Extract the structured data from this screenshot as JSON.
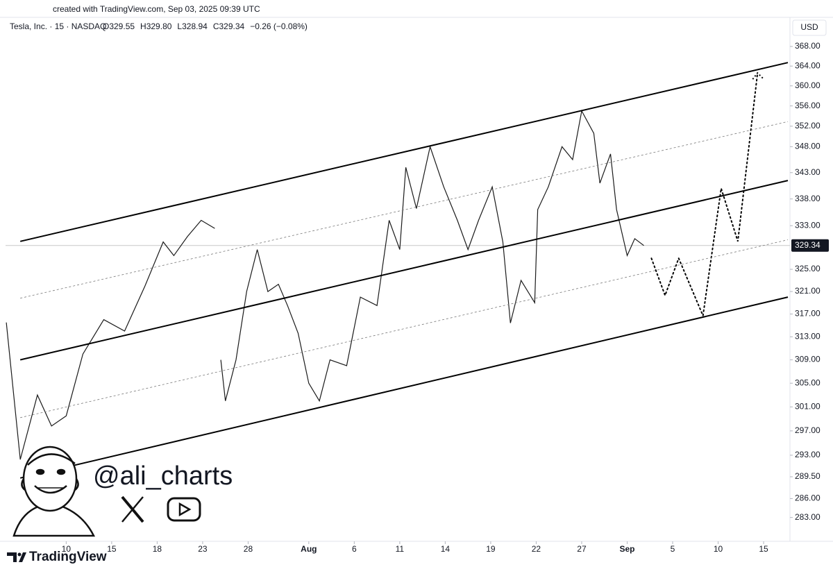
{
  "chart_data": {
    "type": "line",
    "caption": "created with TradingView.com, Sep 03, 2025 09:39 UTC",
    "symbol": "Tesla, Inc. · 15 · NASDAQ",
    "ohlc": [
      "O329.55",
      "H329.80",
      "L328.94",
      "C329.34"
    ],
    "change": "−0.26 (−0.08%)",
    "currency": "USD",
    "handle": "@ali_charts",
    "brand": "TradingView",
    "log": true,
    "last_price": {
      "value": 329.34,
      "label": "329.34"
    },
    "xlim": [
      -4,
      47.6
    ],
    "ylim": [
      281,
      372
    ],
    "xticks": [
      {
        "value": 0,
        "label": "10"
      },
      {
        "value": 3,
        "label": "15"
      },
      {
        "value": 6,
        "label": "18"
      },
      {
        "value": 9,
        "label": "23"
      },
      {
        "value": 12,
        "label": "28"
      },
      {
        "value": 16,
        "label": "Aug"
      },
      {
        "value": 19,
        "label": "6"
      },
      {
        "value": 22,
        "label": "11"
      },
      {
        "value": 25,
        "label": "14"
      },
      {
        "value": 28,
        "label": "19"
      },
      {
        "value": 31,
        "label": "22"
      },
      {
        "value": 34,
        "label": "27"
      },
      {
        "value": 37,
        "label": "Sep"
      },
      {
        "value": 40,
        "label": "5"
      },
      {
        "value": 43,
        "label": "10"
      },
      {
        "value": 46,
        "label": "15"
      }
    ],
    "yticks": [
      {
        "value": 368,
        "label": "368.00"
      },
      {
        "value": 364,
        "label": "364.00"
      },
      {
        "value": 360,
        "label": "360.00"
      },
      {
        "value": 356,
        "label": "356.00"
      },
      {
        "value": 352,
        "label": "352.00"
      },
      {
        "value": 348,
        "label": "348.00"
      },
      {
        "value": 343,
        "label": "343.00"
      },
      {
        "value": 338,
        "label": "338.00"
      },
      {
        "value": 333,
        "label": "333.00"
      },
      {
        "value": 325,
        "label": "325.00"
      },
      {
        "value": 321,
        "label": "321.00"
      },
      {
        "value": 317,
        "label": "317.00"
      },
      {
        "value": 313,
        "label": "313.00"
      },
      {
        "value": 309,
        "label": "309.00"
      },
      {
        "value": 305,
        "label": "305.00"
      },
      {
        "value": 301,
        "label": "301.00"
      },
      {
        "value": 297,
        "label": "297.00"
      },
      {
        "value": 293,
        "label": "293.00"
      },
      {
        "value": 289.5,
        "label": "289.50"
      },
      {
        "value": 286,
        "label": "286.00"
      },
      {
        "value": 283,
        "label": "283.00"
      }
    ],
    "series": [
      {
        "color": "#1a1a1a",
        "style": "solid",
        "width": 1.2,
        "x": [
          -3.95,
          -3.03,
          -1.9,
          -0.97,
          0,
          1.1,
          2.48,
          3.85,
          5.2,
          6.4,
          7.1,
          8,
          8.9,
          9.8,
          null,
          10.2,
          10.5,
          11.2,
          11.9,
          12.6,
          13.3,
          14,
          14.6,
          15.3,
          16,
          16.7,
          17.4,
          18.5,
          19.4,
          20.5,
          21.3,
          22,
          22.4,
          23.1,
          24,
          24.9,
          25.8,
          26.5,
          27.2,
          28.1,
          28.8,
          29.3,
          30,
          30.9,
          31.1,
          31.8,
          32.7,
          33.4,
          34,
          34.8,
          35.2,
          35.9,
          36.3,
          37,
          37.5,
          38.1
        ],
        "values": [
          315.5,
          292.3,
          303,
          297.8,
          299.5,
          310,
          316,
          314,
          322,
          330,
          327.5,
          331,
          334,
          332.5,
          null,
          309,
          302,
          309,
          321,
          328.6,
          321,
          322.3,
          318.5,
          313.6,
          305,
          302,
          309,
          308,
          320,
          318.5,
          334,
          328.6,
          344,
          336.2,
          348,
          340.3,
          334,
          328.6,
          334,
          340.3,
          330,
          315.4,
          323,
          319,
          336,
          340.3,
          348,
          345.5,
          355,
          350.6,
          341,
          346.6,
          336,
          327.5,
          330.6,
          329.34
        ]
      },
      {
        "color": "#000000",
        "style": "dotted",
        "width": 2,
        "x": [
          38.6,
          39.5,
          40.4,
          42.0,
          43.2,
          44.3,
          45.6
        ],
        "values": [
          327,
          320.3,
          327,
          316.7,
          340,
          330.1,
          362.6
        ]
      },
      {
        "color": "#000000",
        "style": "solid",
        "width": 2,
        "x": [
          -3.03,
          47.6
        ],
        "values": [
          330.1,
          364.7
        ]
      },
      {
        "color": "#000000",
        "style": "solid",
        "width": 2,
        "x": [
          -3.03,
          47.6
        ],
        "values": [
          309.0,
          341.5
        ]
      },
      {
        "color": "#000000",
        "style": "solid",
        "width": 2,
        "x": [
          -3.03,
          47.6
        ],
        "values": [
          289.3,
          320
        ]
      },
      {
        "color": "#777777",
        "style": "dashed",
        "width": 0.8,
        "x": [
          -3.03,
          47.6
        ],
        "values": [
          319.8,
          352.9
        ]
      },
      {
        "color": "#777777",
        "style": "dashed",
        "width": 0.8,
        "x": [
          -3.03,
          47.6
        ],
        "values": [
          299.2,
          330.4
        ]
      }
    ]
  }
}
